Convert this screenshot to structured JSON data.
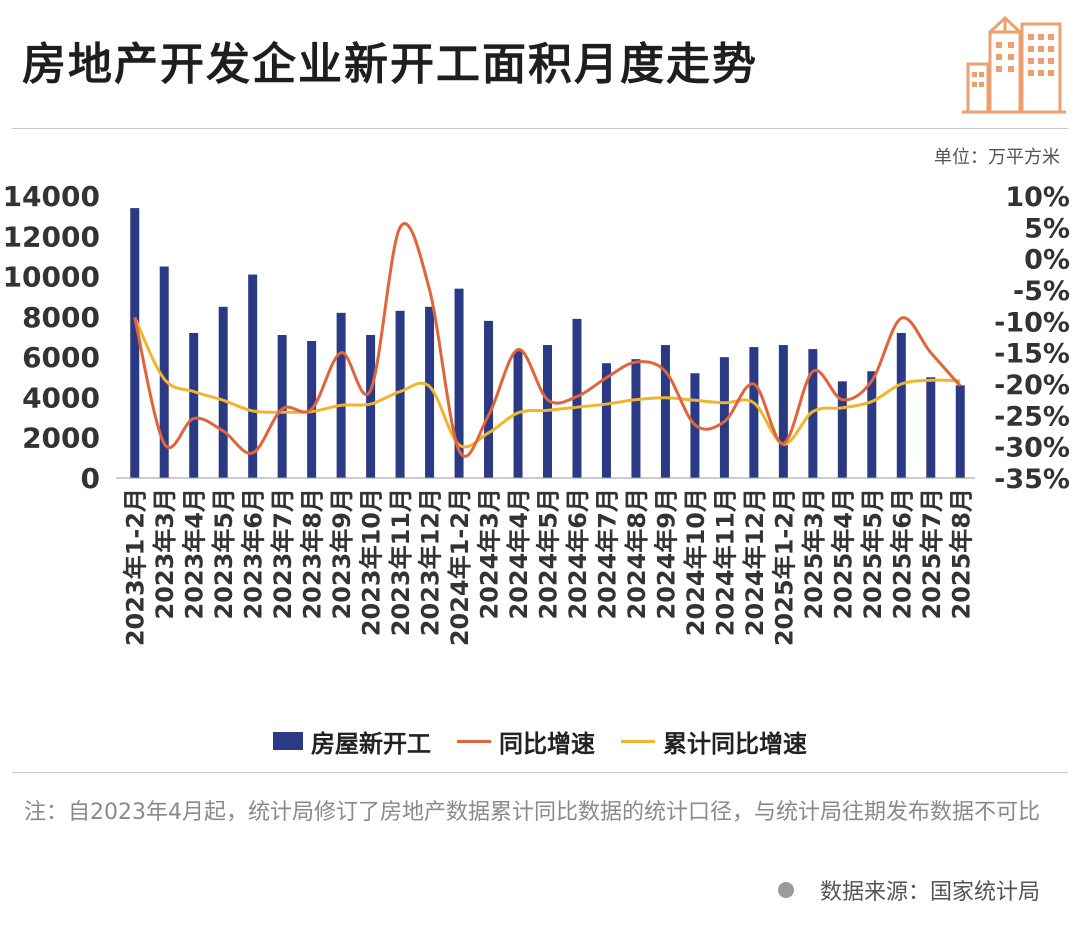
{
  "title": "房地产开发企业新开工面积月度走势",
  "unit": "单位：万平方米",
  "note": "注：自2023年4月起，统计局修订了房地产数据累计同比数据的统计口径，与统计局往期发布数据不可比",
  "source": "数据来源：国家统计局",
  "colors": {
    "bar": "#2b3a84",
    "yoy": "#e0643c",
    "cum": "#efb52f",
    "title": "#1e1e1e",
    "logo": "#eca070"
  },
  "chart_data": {
    "type": "bar",
    "categories": [
      "2023年1-2月",
      "2023年3月",
      "2023年4月",
      "2023年5月",
      "2023年6月",
      "2023年7月",
      "2023年8月",
      "2023年9月",
      "2023年10月",
      "2023年11月",
      "2023年12月",
      "2024年1-2月",
      "2024年3月",
      "2024年4月",
      "2024年5月",
      "2024年6月",
      "2024年7月",
      "2024年8月",
      "2024年9月",
      "2024年10月",
      "2024年11月",
      "2024年12月",
      "2025年1-2月",
      "2025年3月",
      "2025年4月",
      "2025年5月",
      "2025年6月",
      "2025年7月",
      "2025年8月"
    ],
    "y_left": {
      "min": 0,
      "max": 14000,
      "ticks": [
        "0",
        "2000",
        "4000",
        "6000",
        "8000",
        "10000",
        "12000",
        "14000"
      ]
    },
    "y_right": {
      "min": -35,
      "max": 10,
      "ticks": [
        "-35%",
        "-30%",
        "-25%",
        "-20%",
        "-15%",
        "-10%",
        "-5%",
        "0%",
        "5%",
        "10%"
      ]
    },
    "series": [
      {
        "name": "房屋新开工",
        "type": "bar",
        "axis": "left",
        "values": [
          13400,
          10500,
          7200,
          8500,
          10100,
          7100,
          6800,
          8200,
          7100,
          8300,
          8500,
          9400,
          7800,
          6300,
          6600,
          7900,
          5700,
          5900,
          6600,
          5200,
          6000,
          6500,
          6600,
          6400,
          4800,
          5300,
          7200,
          5000,
          4600
        ]
      },
      {
        "name": "同比增速",
        "type": "line",
        "axis": "right",
        "values": [
          -9.4,
          -29.5,
          -25.5,
          -27.5,
          -31.0,
          -24.0,
          -24.0,
          -15.0,
          -21.0,
          5.0,
          -5.0,
          -30.6,
          -25.0,
          -14.5,
          -22.5,
          -22.0,
          -19.0,
          -16.5,
          -18.0,
          -26.5,
          -26.0,
          -20.0,
          -29.5,
          -18.0,
          -22.5,
          -19.5,
          -9.5,
          -15.0,
          -20.3
        ]
      },
      {
        "name": "累计同比增速",
        "type": "line",
        "axis": "right",
        "values": [
          -9.4,
          -19.2,
          -21.2,
          -22.6,
          -24.3,
          -24.5,
          -24.4,
          -23.4,
          -23.2,
          -21.2,
          -20.4,
          -29.7,
          -27.8,
          -24.6,
          -24.2,
          -23.7,
          -23.2,
          -22.5,
          -22.2,
          -22.6,
          -23.0,
          -23.0,
          -29.6,
          -24.4,
          -23.8,
          -22.8,
          -20.0,
          -19.4,
          -19.5
        ]
      }
    ]
  }
}
